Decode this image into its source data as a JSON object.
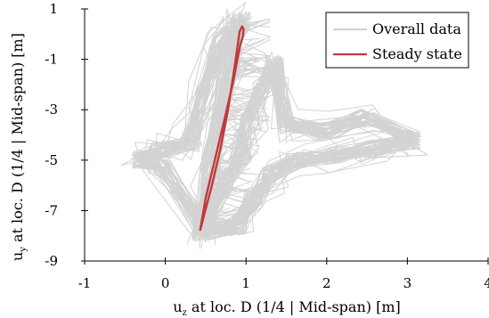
{
  "chart_data": {
    "type": "line",
    "title": "",
    "xlabel": {
      "main": "u",
      "sub": "z",
      "rest": "  at loc. D (1/4 | Mid-span) [m]"
    },
    "ylabel": {
      "main": "u",
      "sub": "y",
      "rest": "  at loc. D (1/4 | Mid-span) [m]"
    },
    "xlim": [
      -1,
      4
    ],
    "ylim": [
      -9,
      1
    ],
    "xticks": [
      -1,
      0,
      1,
      2,
      3,
      4
    ],
    "yticks": [
      -9,
      -7,
      -5,
      -3,
      -1,
      1
    ],
    "grid": false,
    "legend": {
      "placement": "top-right"
    },
    "series": [
      {
        "name": "Overall data",
        "color": "#d3d3d3",
        "style": "dense-scribble",
        "x": [
          0.45,
          0.7,
          0.95,
          1.05,
          1.2,
          1.35,
          1.5,
          2.0,
          2.5,
          3.05,
          2.6,
          2.1,
          1.6,
          1.3,
          1.1,
          0.9,
          0.5,
          -0.05,
          -0.3,
          -0.05,
          0.3,
          0.5,
          0.7,
          0.95,
          0.8,
          0.55,
          0.45
        ],
        "y": [
          -7.9,
          -6.0,
          -4.8,
          -3.5,
          -2.2,
          -1.2,
          -3.6,
          -3.8,
          -3.3,
          -4.2,
          -4.5,
          -4.8,
          -5.0,
          -5.6,
          -6.5,
          -7.6,
          -7.8,
          -5.2,
          -5.0,
          -4.6,
          -4.3,
          -2.5,
          -0.3,
          0.55,
          -1.0,
          -5.5,
          -7.9
        ]
      },
      {
        "name": "Steady state",
        "color": "#c0393b",
        "style": "loop",
        "x": [
          0.43,
          0.5,
          0.62,
          0.74,
          0.84,
          0.9,
          0.93,
          0.96,
          0.97,
          0.95,
          0.92,
          0.89,
          0.84,
          0.77,
          0.68,
          0.57,
          0.47,
          0.43
        ],
        "y": [
          -7.8,
          -6.5,
          -4.9,
          -3.3,
          -1.9,
          -0.9,
          -0.4,
          -0.1,
          0.2,
          0.3,
          0.1,
          -0.6,
          -1.7,
          -3.1,
          -4.6,
          -6.1,
          -7.3,
          -7.8
        ]
      }
    ]
  }
}
